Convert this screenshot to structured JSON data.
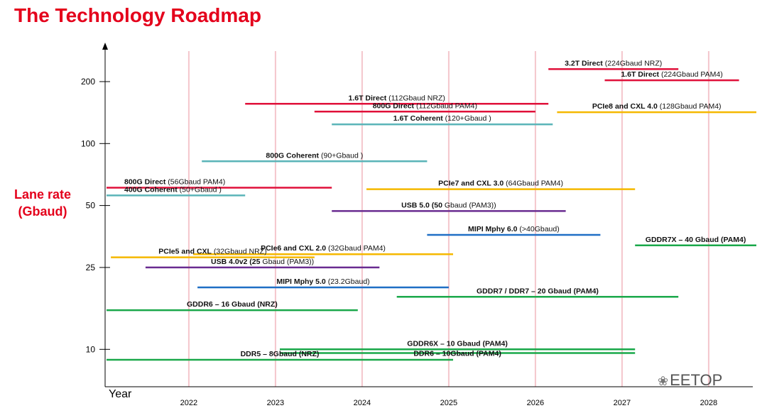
{
  "page": {
    "title": "The Technology Roadmap",
    "ylabel_line1": "Lane rate",
    "ylabel_line2": "(Gbaud)",
    "xlabel": "Year",
    "watermark": "EETOP"
  },
  "colors": {
    "title": "#e4001b",
    "red": "#e0103a",
    "teal": "#5ab4b8",
    "orange": "#f5b800",
    "purple": "#6a2c91",
    "blue": "#1f6fc5",
    "green": "#1aa84a",
    "gridline": "#f4c6cc"
  },
  "chart_data": {
    "type": "roadmap",
    "ylabel": "Lane rate (Gbaud)",
    "xlabel": "Year",
    "y_scale": "log",
    "y_ticks": [
      10,
      25,
      50,
      100,
      200
    ],
    "x_ticks": [
      "2022",
      "2023",
      "2024",
      "2025",
      "2026",
      "2027",
      "2028"
    ],
    "x_range": [
      2021.0,
      2028.5
    ],
    "y_range": [
      7,
      290
    ],
    "grid": "vertical lines at each year",
    "bars": [
      {
        "bold": "3.2T Direct",
        "rest": " (224Gbaud NRZ)",
        "color": "red",
        "x0": 2026.1,
        "x1": 2027.6,
        "y": 230,
        "label_pos": "above-right"
      },
      {
        "bold": "1.6T Direct",
        "rest": " (224Gbaud PAM4)",
        "color": "red",
        "x0": 2026.75,
        "x1": 2028.3,
        "y": 203,
        "label_pos": "above-right"
      },
      {
        "bold": "1.6T Direct",
        "rest": " (112Gbaud NRZ)",
        "color": "red",
        "x0": 2022.6,
        "x1": 2026.1,
        "y": 156,
        "label_pos": "above"
      },
      {
        "bold": "800G Direct",
        "rest": " (112Gbaud PAM4)",
        "color": "red",
        "x0": 2023.4,
        "x1": 2025.95,
        "y": 143,
        "label_pos": "above"
      },
      {
        "bold": "PCIe8 and CXL 4.0",
        "rest": " (128Gbaud PAM4)",
        "color": "orange",
        "x0": 2026.2,
        "x1": 2028.5,
        "y": 142,
        "label_pos": "above-right"
      },
      {
        "bold": "1.6T Coherent",
        "rest": " (120+Gbaud )",
        "color": "teal",
        "x0": 2023.6,
        "x1": 2026.15,
        "y": 124,
        "label_pos": "above"
      },
      {
        "bold": "800G Coherent",
        "rest": " (90+Gbaud )",
        "color": "teal",
        "x0": 2022.1,
        "x1": 2024.7,
        "y": 82,
        "label_pos": "above"
      },
      {
        "bold": "800G Direct",
        "rest": " (56Gbaud PAM4)",
        "color": "red",
        "x0": 2021.0,
        "x1": 2023.6,
        "y": 61,
        "label_pos": "above-left"
      },
      {
        "bold": "400G Coherent",
        "rest": " (50+Gbaud )",
        "color": "teal",
        "x0": 2021.0,
        "x1": 2022.6,
        "y": 56,
        "label_pos": "above-left"
      },
      {
        "bold": "PCIe7 and CXL 3.0",
        "rest": " (64Gbaud PAM4)",
        "color": "orange",
        "x0": 2024.0,
        "x1": 2027.1,
        "y": 60,
        "label_pos": "above"
      },
      {
        "bold": "USB 5.0 (50",
        "rest": " Gbaud (PAM3))",
        "color": "purple",
        "x0": 2023.6,
        "x1": 2026.3,
        "y": 47,
        "label_pos": "above"
      },
      {
        "bold": "MIPI Mphy 6.0",
        "rest": " (>40Gbaud)",
        "color": "blue",
        "x0": 2024.7,
        "x1": 2026.7,
        "y": 36,
        "label_pos": "above-right"
      },
      {
        "bold": "GDDR7X – 40 Gbaud (PAM4)",
        "rest": "",
        "color": "green",
        "x0": 2027.1,
        "x1": 2028.5,
        "y": 32,
        "label_pos": "above"
      },
      {
        "bold": "PCIe6 and CXL 2.0",
        "rest": " (32Gbaud PAM4)",
        "color": "orange",
        "x0": 2022.0,
        "x1": 2025.0,
        "y": 29,
        "label_pos": "above-right"
      },
      {
        "bold": "PCIe5 and CXL",
        "rest": " (32Gbaud NRZ)",
        "color": "orange",
        "x0": 2021.05,
        "x1": 2023.4,
        "y": 28,
        "label_pos": "above"
      },
      {
        "bold": "USB 4.0v2 (25",
        "rest": " Gbaud (PAM3))",
        "color": "purple",
        "x0": 2021.45,
        "x1": 2024.15,
        "y": 25,
        "label_pos": "above"
      },
      {
        "bold": "MIPI Mphy 5.0",
        "rest": " (23.2Gbaud)",
        "color": "blue",
        "x0": 2022.05,
        "x1": 2024.95,
        "y": 20,
        "label_pos": "above"
      },
      {
        "bold": "GDDR7 / DDR7 – 20 Gbaud (PAM4)",
        "rest": "",
        "color": "green",
        "x0": 2024.35,
        "x1": 2027.6,
        "y": 18,
        "label_pos": "above"
      },
      {
        "bold": "GDDR6 – 16 Gbaud (NRZ)",
        "rest": "",
        "color": "green",
        "x0": 2021.0,
        "x1": 2023.9,
        "y": 15.5,
        "label_pos": "above"
      },
      {
        "bold": "GDDR6X – 10 Gbaud (PAM4)",
        "rest": "",
        "color": "green",
        "x0": 2023.0,
        "x1": 2027.1,
        "y": 10,
        "label_pos": "above"
      },
      {
        "bold": "DDR6 – 10Gbaud (PAM4)",
        "rest": "",
        "color": "green",
        "x0": 2023.0,
        "x1": 2027.1,
        "y": 9.6,
        "label_pos": "inline"
      },
      {
        "bold": "DDR5 – 8Gbaud (NRZ)",
        "rest": "",
        "color": "green",
        "x0": 2021.0,
        "x1": 2025.0,
        "y": 8.9,
        "label_pos": "above"
      }
    ]
  }
}
